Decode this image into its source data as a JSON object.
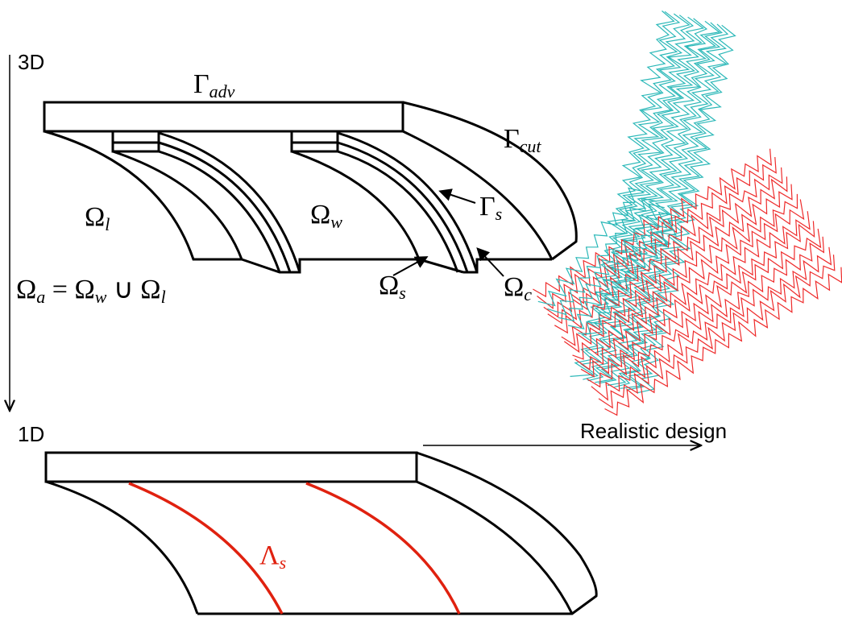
{
  "labels": {
    "top_level": "3D",
    "bottom_level": "1D",
    "realistic": "Realistic design",
    "gamma_adv": {
      "main": "Γ",
      "sub": "adv"
    },
    "gamma_cut": {
      "main": "Γ",
      "sub": "cut"
    },
    "omega_l": {
      "main": "Ω",
      "sub": "l"
    },
    "omega_w": {
      "main": "Ω",
      "sub": "w"
    },
    "gamma_s": {
      "main": "Γ",
      "sub": "s"
    },
    "omega_s": {
      "main": "Ω",
      "sub": "s"
    },
    "omega_c": {
      "main": "Ω",
      "sub": "c"
    },
    "equation": [
      {
        "main": "Ω",
        "sub": "a"
      },
      {
        "main": " = Ω",
        "sub": "w"
      },
      {
        "main": " ∪ Ω",
        "sub": "l"
      }
    ],
    "lambda_s": {
      "main": "Λ",
      "sub": "s"
    }
  }
}
